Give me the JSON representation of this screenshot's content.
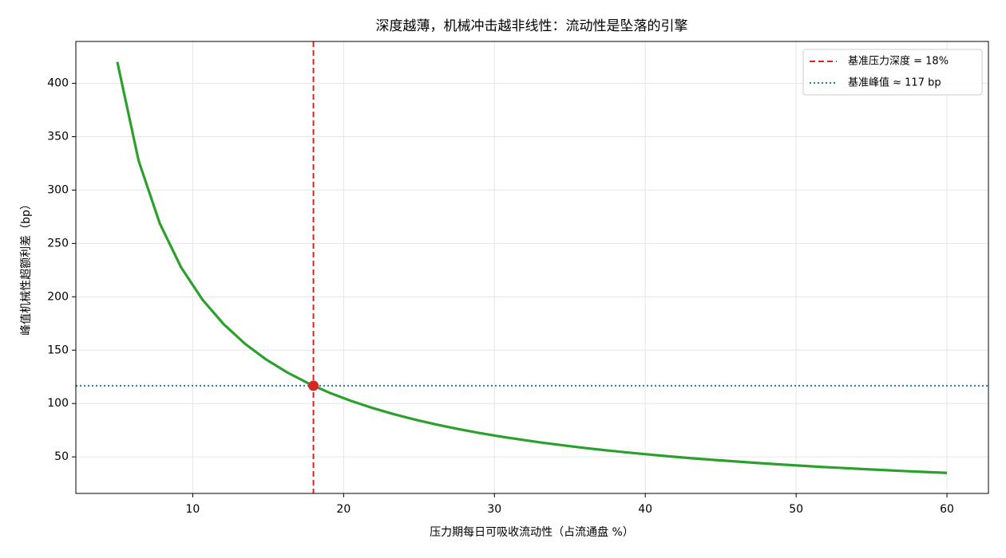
{
  "chart_data": {
    "type": "line",
    "title": "深度越薄，机械冲击越非线性：流动性是坠落的引擎",
    "xlabel": "压力期每日可吸收流动性（占流通盘 %）",
    "ylabel": "峰值机械性超额利差（bp）",
    "x": [
      5.0,
      6.41,
      7.82,
      9.23,
      10.64,
      12.05,
      13.46,
      14.87,
      16.28,
      17.69,
      19.1,
      20.51,
      21.92,
      23.33,
      24.74,
      26.15,
      27.56,
      28.97,
      30.38,
      31.79,
      33.21,
      34.62,
      36.03,
      37.44,
      38.85,
      40.26,
      41.67,
      43.08,
      44.49,
      45.9,
      47.31,
      48.72,
      50.13,
      51.54,
      52.95,
      54.36,
      55.77,
      57.18,
      58.59,
      60.0
    ],
    "values": [
      420.0,
      327.6,
      268.5,
      227.5,
      197.4,
      174.3,
      156.0,
      141.2,
      129.0,
      118.7,
      109.9,
      102.4,
      95.8,
      90.0,
      84.9,
      80.3,
      76.2,
      72.5,
      69.1,
      66.1,
      63.2,
      60.7,
      58.3,
      56.1,
      54.1,
      52.2,
      50.4,
      48.7,
      47.2,
      45.8,
      44.4,
      43.1,
      41.9,
      40.7,
      39.7,
      38.6,
      37.7,
      36.7,
      35.8,
      35.0
    ],
    "color": "#2ca02c",
    "reference_lines": [
      {
        "axis": "x",
        "value": 18,
        "label": "基准压力深度 = 18%",
        "color": "#d62728",
        "style": "dashed"
      },
      {
        "axis": "y",
        "value": 116.7,
        "label": "基准峰值 ≈ 117 bp",
        "color": "#1f77b4",
        "style": "dotted"
      }
    ],
    "marker": {
      "x": 18,
      "y": 116.7,
      "color": "#d62728"
    },
    "xlim": [
      2.25,
      62.75
    ],
    "xticks": [
      10,
      20,
      30,
      40,
      50,
      60
    ],
    "ylim": [
      15.75,
      439.25
    ],
    "yticks": [
      50,
      100,
      150,
      200,
      250,
      300,
      350,
      400
    ],
    "grid": true,
    "legend": "upper right"
  }
}
